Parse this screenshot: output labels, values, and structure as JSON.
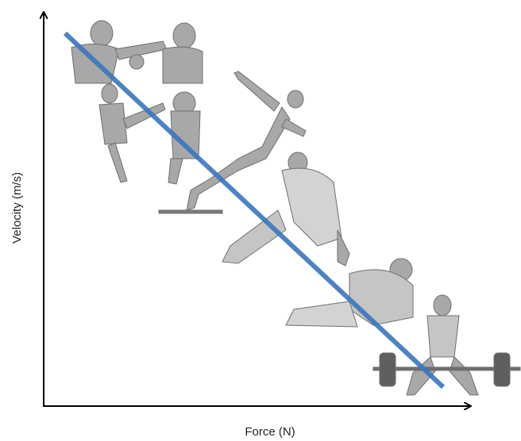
{
  "axes": {
    "x_label": "Force (N)",
    "y_label": "Velocity (m/s)"
  }
}
